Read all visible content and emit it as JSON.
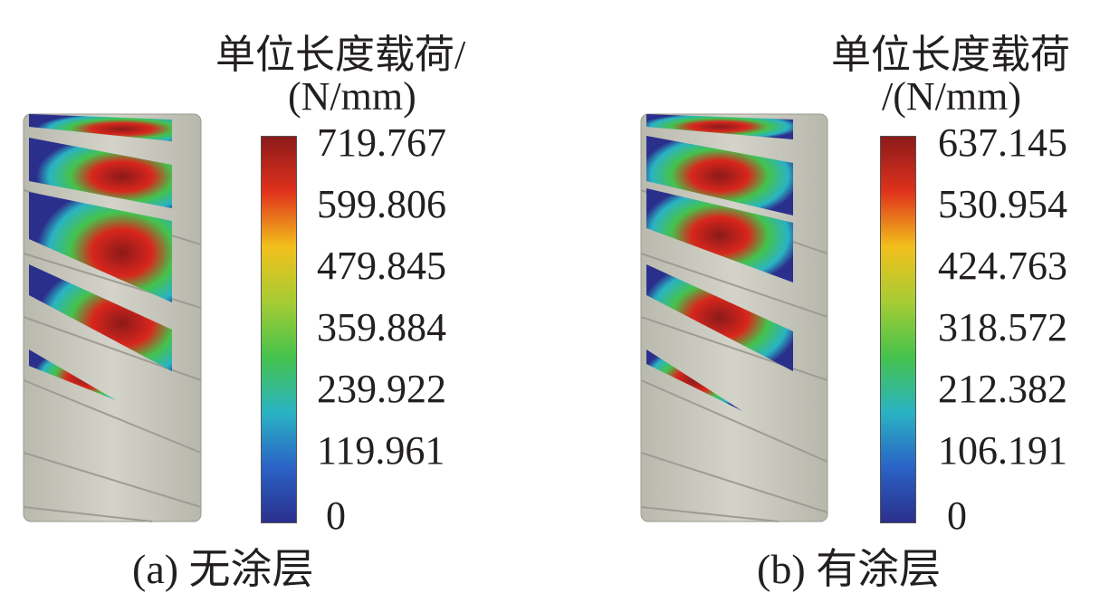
{
  "panels": [
    {
      "caption": "(a)  无涂层",
      "legend_title_lines": [
        "单位长度载荷/",
        "(N/mm)"
      ],
      "ticks": [
        "719.767",
        "599.806",
        "479.845",
        "359.884",
        "239.922",
        "119.961",
        "0"
      ]
    },
    {
      "caption": "(b)  有涂层",
      "legend_title_lines": [
        "单位长度载荷",
        "/(N/mm)"
      ],
      "ticks": [
        "637.145",
        "530.954",
        "424.763",
        "318.572",
        "212.382",
        "106.191",
        "0"
      ]
    }
  ],
  "colormap": [
    "#2b2f8c",
    "#2a63c6",
    "#2ab3c3",
    "#45c24c",
    "#a6cc34",
    "#f2c01c",
    "#e0321c",
    "#8b1a1a"
  ],
  "gear_color": "#c9c9bf"
}
